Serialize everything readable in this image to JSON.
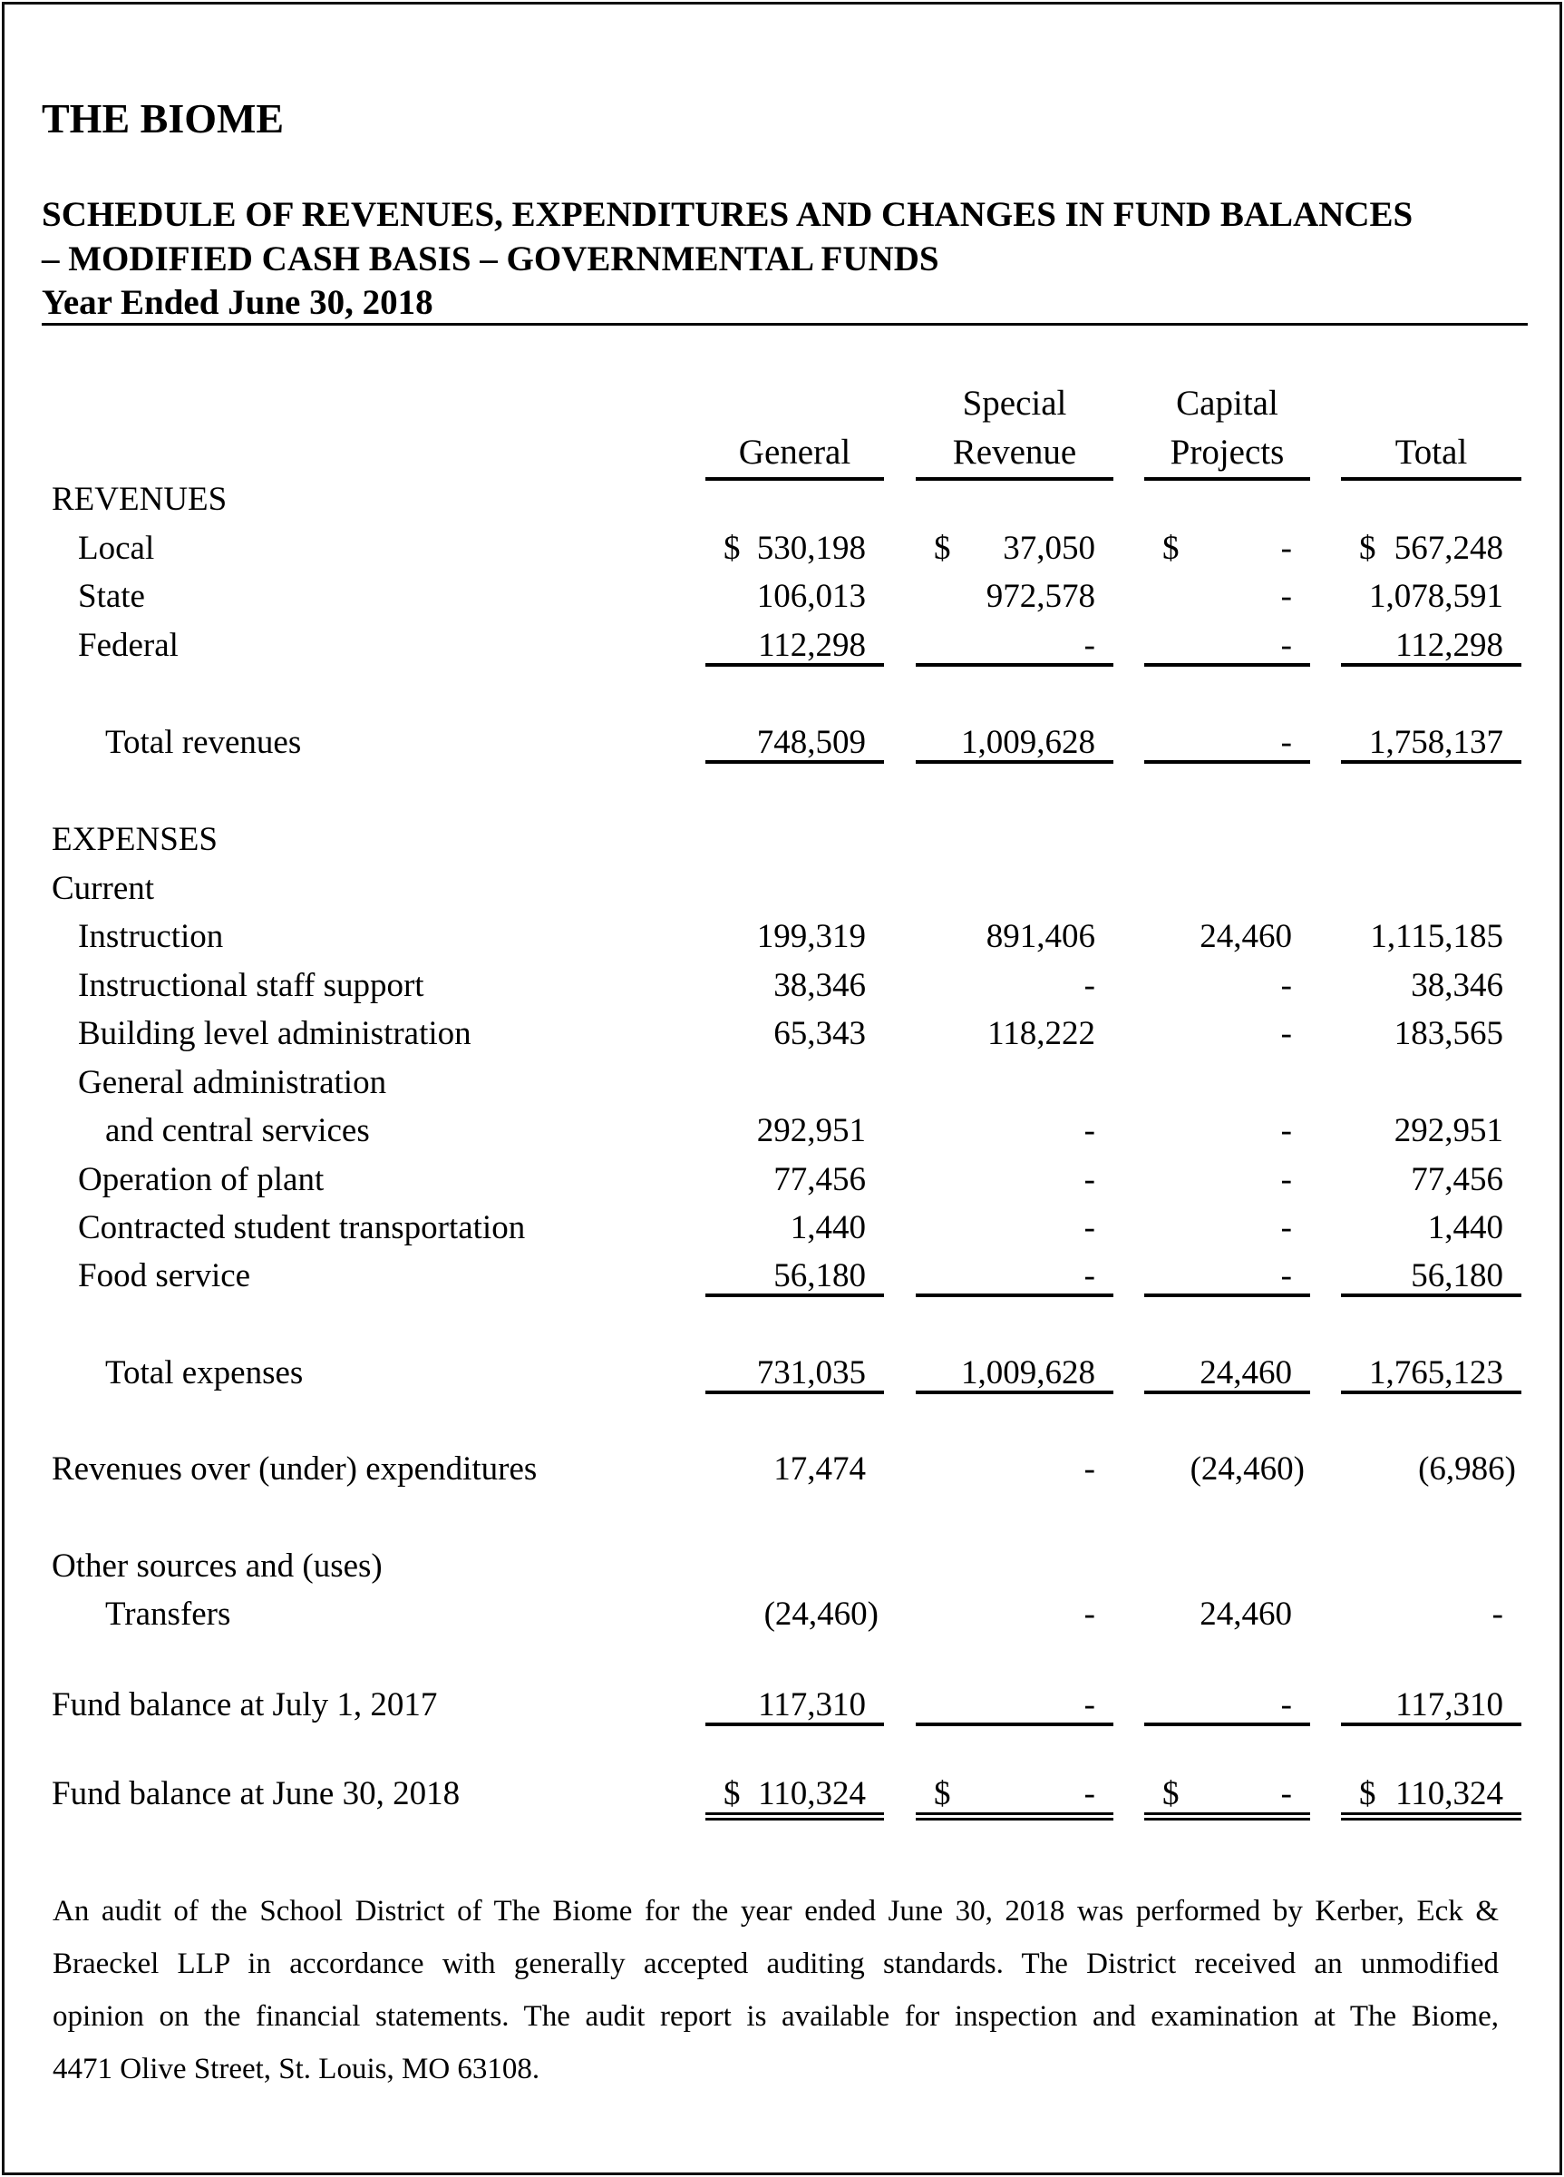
{
  "header": {
    "org": "THE BIOME",
    "title_line1": "SCHEDULE OF REVENUES, EXPENDITURES AND CHANGES IN FUND BALANCES",
    "title_line2": "– MODIFIED CASH BASIS – GOVERNMENTAL FUNDS",
    "period": "Year Ended June 30, 2018"
  },
  "columns": [
    {
      "line1": "",
      "line2": "General"
    },
    {
      "line1": "Special",
      "line2": "Revenue"
    },
    {
      "line1": "Capital",
      "line2": "Projects"
    },
    {
      "line1": "",
      "line2": "Total"
    }
  ],
  "rows": [
    {
      "label": "REVENUES",
      "indent": 0,
      "values": [
        "",
        "",
        "",
        ""
      ]
    },
    {
      "label": "Local",
      "indent": 1,
      "values": [
        "$ 530,198",
        "$ 37,050",
        "$ -",
        "$ 567,248"
      ]
    },
    {
      "label": "State",
      "indent": 1,
      "values": [
        "106,013",
        "972,578",
        "-",
        "1,078,591"
      ]
    },
    {
      "label": "Federal",
      "indent": 1,
      "values": [
        "112,298",
        "-",
        "-",
        "112,298"
      ]
    },
    {
      "label": "Total revenues",
      "indent": 2,
      "values": [
        "748,509",
        "1,009,628",
        "-",
        "1,758,137"
      ]
    },
    {
      "label": "EXPENSES",
      "indent": 0,
      "values": [
        "",
        "",
        "",
        ""
      ]
    },
    {
      "label": "Current",
      "indent": 0,
      "values": [
        "",
        "",
        "",
        ""
      ]
    },
    {
      "label": "Instruction",
      "indent": 1,
      "values": [
        "199,319",
        "891,406",
        "24,460",
        "1,115,185"
      ]
    },
    {
      "label": "Instructional staff support",
      "indent": 1,
      "values": [
        "38,346",
        "-",
        "-",
        "38,346"
      ]
    },
    {
      "label": "Building level administration",
      "indent": 1,
      "values": [
        "65,343",
        "118,222",
        "-",
        "183,565"
      ]
    },
    {
      "label": "General administration",
      "indent": 1,
      "values": [
        "",
        "",
        "",
        ""
      ]
    },
    {
      "label": "and central services",
      "indent": 2,
      "values": [
        "292,951",
        "-",
        "-",
        "292,951"
      ]
    },
    {
      "label": "Operation of plant",
      "indent": 1,
      "values": [
        "77,456",
        "-",
        "-",
        "77,456"
      ]
    },
    {
      "label": "Contracted student transportation",
      "indent": 1,
      "values": [
        "1,440",
        "-",
        "-",
        "1,440"
      ]
    },
    {
      "label": "Food service",
      "indent": 1,
      "values": [
        "56,180",
        "-",
        "-",
        "56,180"
      ]
    },
    {
      "label": "Total expenses",
      "indent": 2,
      "values": [
        "731,035",
        "1,009,628",
        "24,460",
        "1,765,123"
      ]
    },
    {
      "label": "Revenues over (under) expenditures",
      "indent": 0,
      "values": [
        "17,474",
        "-",
        "(24,460)",
        "(6,986)"
      ]
    },
    {
      "label": "Other sources and (uses)",
      "indent": 0,
      "values": [
        "",
        "",
        "",
        ""
      ]
    },
    {
      "label": "Transfers",
      "indent": 2,
      "values": [
        "(24,460)",
        "-",
        "24,460",
        "-"
      ]
    },
    {
      "label": "Fund balance at July 1, 2017",
      "indent": 0,
      "values": [
        "117,310",
        "-",
        "-",
        "117,310"
      ]
    },
    {
      "label": "Fund balance at June 30, 2018",
      "indent": 0,
      "values": [
        "$ 110,324",
        "$ -",
        "$ -",
        "$ 110,324"
      ]
    }
  ],
  "note": {
    "lines": [
      "An audit of the School District of  The Biome for  the year ended June 30, 2018 was performed by Kerber, Eck &",
      "Braeckel LLP in  accordance  with  generally  accepted auditing standards.  The District received an unmodified",
      "opinion on the financial statements.  The audit report is available for inspection and examination at The Biome,",
      "4471 Olive Street, St. Louis, MO 63108."
    ]
  }
}
